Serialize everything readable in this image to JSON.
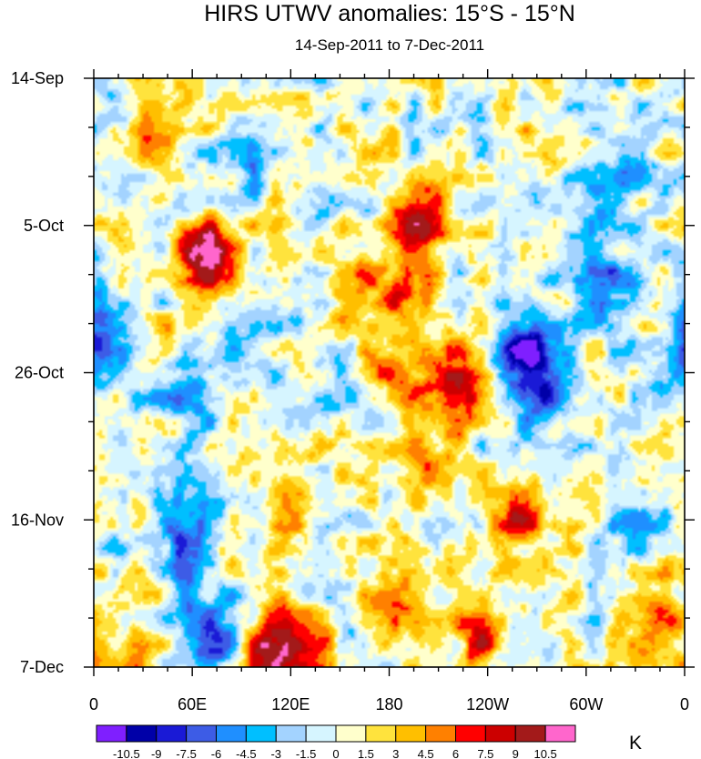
{
  "chart_data": {
    "type": "heatmap",
    "title": "HIRS UTWV anomalies: 15°S - 15°N",
    "subtitle": "14-Sep-2011 to 7-Dec-2011",
    "xlabel": "",
    "ylabel": "",
    "x_ticks": [
      "0",
      "60E",
      "120E",
      "180",
      "120W",
      "60W",
      "0"
    ],
    "y_ticks": [
      "14-Sep",
      "5-Oct",
      "26-Oct",
      "16-Nov",
      "7-Dec"
    ],
    "colorbar": {
      "units": "K",
      "levels": [
        "-10.5",
        "-9",
        "-7.5",
        "-6",
        "-4.5",
        "-3",
        "-1.5",
        "0",
        "1.5",
        "3",
        "4.5",
        "6",
        "7.5",
        "9",
        "10.5"
      ],
      "colors": [
        "#7f1fff",
        "#0000a8",
        "#1a1ad6",
        "#3d5ce6",
        "#1f8fff",
        "#00bfff",
        "#a3d3ff",
        "#d6f5ff",
        "#ffffcc",
        "#ffe33d",
        "#ffbf00",
        "#ff8000",
        "#ff0000",
        "#cc0000",
        "#a31a1a",
        "#ff66cc"
      ]
    },
    "features": [
      {
        "lon": 200,
        "day": 20,
        "value": 7.5
      },
      {
        "lon": 190,
        "day": 29,
        "value": 6.5
      },
      {
        "lon": 185,
        "day": 42,
        "value": 6.0
      },
      {
        "lon": 200,
        "day": 55,
        "value": 6.0
      },
      {
        "lon": 70,
        "day": 25,
        "value": 10.5
      },
      {
        "lon": 60,
        "day": 45,
        "value": -6.0
      },
      {
        "lon": 55,
        "day": 65,
        "value": -7.5
      },
      {
        "lon": 70,
        "day": 80,
        "value": -9.0
      },
      {
        "lon": 265,
        "day": 38,
        "value": -9.0
      },
      {
        "lon": 270,
        "day": 44,
        "value": -7.5
      },
      {
        "lon": 220,
        "day": 44,
        "value": 9.0
      },
      {
        "lon": 258,
        "day": 62,
        "value": 7.5
      },
      {
        "lon": 105,
        "day": 82,
        "value": 9.0
      },
      {
        "lon": 125,
        "day": 83,
        "value": 7.5
      },
      {
        "lon": 235,
        "day": 80,
        "value": 7.5
      },
      {
        "lon": 20,
        "day": 84,
        "value": 7.5
      },
      {
        "lon": 185,
        "day": 75,
        "value": 6.0
      },
      {
        "lon": 120,
        "day": 60,
        "value": 6.0
      },
      {
        "lon": 345,
        "day": 76,
        "value": 6.0
      },
      {
        "lon": 5,
        "day": 37,
        "value": -6.0
      },
      {
        "lon": 40,
        "day": 10,
        "value": 4.5
      },
      {
        "lon": 310,
        "day": 28,
        "value": -6.0
      },
      {
        "lon": 330,
        "day": 65,
        "value": -4.5
      },
      {
        "lon": 160,
        "day": 30,
        "value": 4.5
      },
      {
        "lon": 320,
        "day": 12,
        "value": -4.5
      },
      {
        "lon": 90,
        "day": 10,
        "value": -4.5
      }
    ]
  }
}
